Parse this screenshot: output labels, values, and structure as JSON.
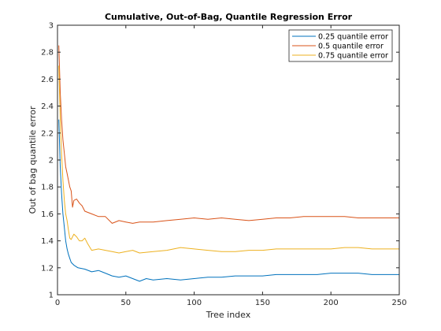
{
  "chart_data": {
    "type": "line",
    "title": "Cumulative, Out-of-Bag, Quantile Regression Error",
    "xlabel": "Tree index",
    "ylabel": "Out of bag quantile error",
    "xlim": [
      0,
      250
    ],
    "ylim": [
      1,
      3
    ],
    "xticks": [
      "0",
      "50",
      "100",
      "150",
      "200",
      "250"
    ],
    "yticks": [
      "1",
      "1.2",
      "1.4",
      "1.6",
      "1.8",
      "2",
      "2.2",
      "2.4",
      "2.6",
      "2.8",
      "3"
    ],
    "grid": false,
    "legend_position": "top-right",
    "series": [
      {
        "name": "0.25 quantile error",
        "color": "#0072BD",
        "points": [
          [
            1,
            2.3
          ],
          [
            2,
            1.95
          ],
          [
            3,
            1.75
          ],
          [
            4,
            1.6
          ],
          [
            5,
            1.5
          ],
          [
            6,
            1.4
          ],
          [
            7,
            1.34
          ],
          [
            8,
            1.3
          ],
          [
            9,
            1.27
          ],
          [
            10,
            1.24
          ],
          [
            12,
            1.22
          ],
          [
            15,
            1.2
          ],
          [
            20,
            1.19
          ],
          [
            25,
            1.17
          ],
          [
            30,
            1.18
          ],
          [
            35,
            1.16
          ],
          [
            40,
            1.14
          ],
          [
            45,
            1.13
          ],
          [
            50,
            1.14
          ],
          [
            55,
            1.12
          ],
          [
            60,
            1.1
          ],
          [
            65,
            1.12
          ],
          [
            70,
            1.11
          ],
          [
            80,
            1.12
          ],
          [
            90,
            1.11
          ],
          [
            100,
            1.12
          ],
          [
            110,
            1.13
          ],
          [
            120,
            1.13
          ],
          [
            130,
            1.14
          ],
          [
            140,
            1.14
          ],
          [
            150,
            1.14
          ],
          [
            160,
            1.15
          ],
          [
            170,
            1.15
          ],
          [
            180,
            1.15
          ],
          [
            190,
            1.15
          ],
          [
            200,
            1.16
          ],
          [
            210,
            1.16
          ],
          [
            220,
            1.16
          ],
          [
            230,
            1.15
          ],
          [
            240,
            1.15
          ],
          [
            250,
            1.15
          ]
        ]
      },
      {
        "name": "0.5 quantile error",
        "color": "#D95319",
        "points": [
          [
            1,
            2.85
          ],
          [
            2,
            2.5
          ],
          [
            3,
            2.3
          ],
          [
            4,
            2.15
          ],
          [
            5,
            2.05
          ],
          [
            6,
            1.95
          ],
          [
            7,
            1.9
          ],
          [
            8,
            1.85
          ],
          [
            9,
            1.8
          ],
          [
            10,
            1.77
          ],
          [
            11,
            1.65
          ],
          [
            12,
            1.7
          ],
          [
            14,
            1.71
          ],
          [
            16,
            1.68
          ],
          [
            18,
            1.66
          ],
          [
            20,
            1.62
          ],
          [
            25,
            1.6
          ],
          [
            30,
            1.58
          ],
          [
            35,
            1.58
          ],
          [
            40,
            1.53
          ],
          [
            45,
            1.55
          ],
          [
            50,
            1.54
          ],
          [
            55,
            1.53
          ],
          [
            60,
            1.54
          ],
          [
            70,
            1.54
          ],
          [
            80,
            1.55
          ],
          [
            90,
            1.56
          ],
          [
            100,
            1.57
          ],
          [
            110,
            1.56
          ],
          [
            120,
            1.57
          ],
          [
            130,
            1.56
          ],
          [
            140,
            1.55
          ],
          [
            150,
            1.56
          ],
          [
            160,
            1.57
          ],
          [
            170,
            1.57
          ],
          [
            180,
            1.58
          ],
          [
            190,
            1.58
          ],
          [
            200,
            1.58
          ],
          [
            210,
            1.58
          ],
          [
            220,
            1.57
          ],
          [
            230,
            1.57
          ],
          [
            240,
            1.57
          ],
          [
            250,
            1.57
          ]
        ]
      },
      {
        "name": "0.75 quantile error",
        "color": "#EDB120",
        "points": [
          [
            1,
            2.7
          ],
          [
            2,
            2.3
          ],
          [
            3,
            2.05
          ],
          [
            4,
            1.85
          ],
          [
            5,
            1.7
          ],
          [
            6,
            1.6
          ],
          [
            7,
            1.55
          ],
          [
            8,
            1.48
          ],
          [
            9,
            1.42
          ],
          [
            10,
            1.41
          ],
          [
            12,
            1.45
          ],
          [
            14,
            1.43
          ],
          [
            16,
            1.4
          ],
          [
            18,
            1.4
          ],
          [
            20,
            1.42
          ],
          [
            22,
            1.38
          ],
          [
            25,
            1.33
          ],
          [
            30,
            1.34
          ],
          [
            35,
            1.33
          ],
          [
            40,
            1.32
          ],
          [
            45,
            1.31
          ],
          [
            50,
            1.32
          ],
          [
            55,
            1.33
          ],
          [
            60,
            1.31
          ],
          [
            70,
            1.32
          ],
          [
            80,
            1.33
          ],
          [
            90,
            1.35
          ],
          [
            100,
            1.34
          ],
          [
            110,
            1.33
          ],
          [
            120,
            1.32
          ],
          [
            130,
            1.32
          ],
          [
            140,
            1.33
          ],
          [
            150,
            1.33
          ],
          [
            160,
            1.34
          ],
          [
            170,
            1.34
          ],
          [
            180,
            1.34
          ],
          [
            190,
            1.34
          ],
          [
            200,
            1.34
          ],
          [
            210,
            1.35
          ],
          [
            220,
            1.35
          ],
          [
            230,
            1.34
          ],
          [
            240,
            1.34
          ],
          [
            250,
            1.34
          ]
        ]
      }
    ]
  }
}
